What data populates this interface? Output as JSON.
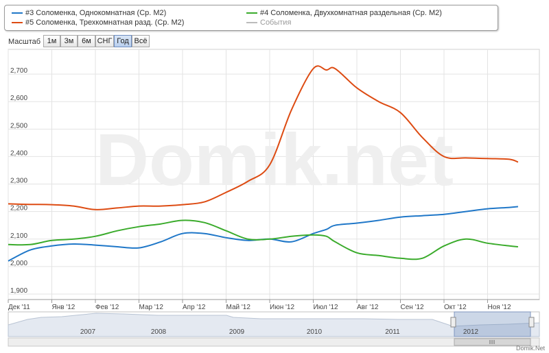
{
  "legend": [
    {
      "label": "#3 Соломенка, Однокомнатная (Ср. М2)",
      "color": "#1f77c8"
    },
    {
      "label": "#4 Соломенка, Двухкомнатная раздельная (Ср. М2)",
      "color": "#3aab2b"
    },
    {
      "label": "#5 Соломенка, Трехкомнатная разд. (Ср. М2)",
      "color": "#dd4b12"
    },
    {
      "label": "События",
      "color": "#bbbbbb"
    }
  ],
  "range_selector": {
    "label": "Масштаб",
    "buttons": [
      "1м",
      "3м",
      "6м",
      "СНГ",
      "Год",
      "Всё"
    ],
    "active": "Год"
  },
  "watermark": "Domik.net",
  "credit": "Domik.Net",
  "chart_data": {
    "type": "line",
    "x_tick_labels": [
      "Дек '11",
      "Янв '12",
      "Фев '12",
      "Мар '12",
      "Апр '12",
      "Май '12",
      "Июн '12",
      "Июл '12",
      "Авг '12",
      "Сен '12",
      "Окт '12",
      "Ноя '12"
    ],
    "ylim": [
      1880,
      2790
    ],
    "y_ticks": [
      1900,
      2000,
      2100,
      2200,
      2300,
      2400,
      2500,
      2600,
      2700
    ],
    "y_tick_labels": [
      "1,900",
      "2,000",
      "2,100",
      "2,200",
      "2,300",
      "2,400",
      "2,500",
      "2,600",
      "2,700"
    ],
    "x": [
      0,
      0.5,
      1,
      1.5,
      2,
      2.5,
      3,
      3.5,
      4,
      4.5,
      5,
      5.5,
      6,
      6.5,
      7,
      7.3,
      7.5,
      8,
      8.5,
      9,
      9.5,
      10,
      10.5,
      11,
      11.5,
      11.7
    ],
    "series": [
      {
        "name": "#3 Соломенка, Однокомнатная (Ср. М2)",
        "color": "#1f77c8",
        "values": [
          2020,
          2060,
          2075,
          2082,
          2078,
          2072,
          2068,
          2090,
          2120,
          2120,
          2105,
          2095,
          2100,
          2090,
          2120,
          2135,
          2150,
          2158,
          2168,
          2180,
          2185,
          2190,
          2200,
          2210,
          2215,
          2218
        ]
      },
      {
        "name": "#4 Соломенка, Двухкомнатная раздельная (Ср. М2)",
        "color": "#3aab2b",
        "values": [
          2080,
          2080,
          2095,
          2100,
          2110,
          2130,
          2145,
          2155,
          2168,
          2160,
          2130,
          2100,
          2100,
          2110,
          2115,
          2110,
          2090,
          2050,
          2040,
          2030,
          2030,
          2075,
          2100,
          2085,
          2075,
          2072
        ]
      },
      {
        "name": "#5 Соломенка, Трехкомнатная разд. (Ср. М2)",
        "color": "#dd4b12",
        "values": [
          2228,
          2226,
          2225,
          2220,
          2207,
          2213,
          2220,
          2220,
          2225,
          2235,
          2270,
          2310,
          2370,
          2570,
          2720,
          2715,
          2720,
          2650,
          2600,
          2560,
          2470,
          2400,
          2395,
          2393,
          2390,
          2380
        ]
      }
    ]
  },
  "navigator": {
    "year_labels": [
      "2007",
      "2008",
      "2009",
      "2010",
      "2011",
      "2012"
    ]
  }
}
